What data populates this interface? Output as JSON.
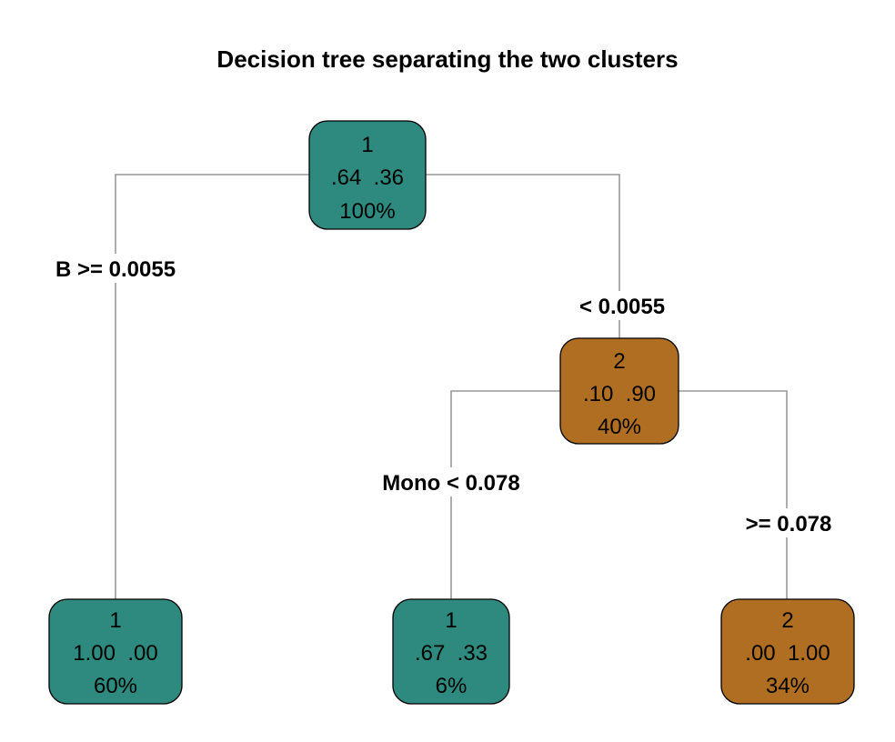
{
  "title": "Decision tree separating the two clusters",
  "colors": {
    "class_1": "#2e8a7e",
    "class_2": "#b06e22",
    "edge": "#9a9a9a"
  },
  "nodes": {
    "root": {
      "class": "1",
      "probs": ".64  .36",
      "pct": "100%"
    },
    "right": {
      "class": "2",
      "probs": ".10  .90",
      "pct": "40%"
    },
    "leaf_a": {
      "class": "1",
      "probs": "1.00  .00",
      "pct": "60%"
    },
    "leaf_b": {
      "class": "1",
      "probs": ".67  .33",
      "pct": "6%"
    },
    "leaf_c": {
      "class": "2",
      "probs": ".00  1.00",
      "pct": "34%"
    }
  },
  "splits": {
    "root_left": "B >= 0.0055",
    "root_right": "< 0.0055",
    "right_left": "Mono < 0.078",
    "right_right": ">= 0.078"
  }
}
